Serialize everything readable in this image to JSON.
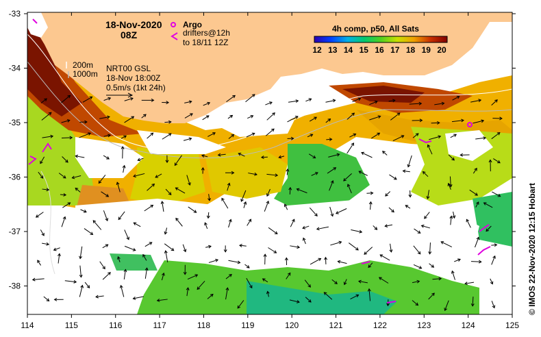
{
  "title": {
    "date": "18-Nov-2020",
    "time": "08Z"
  },
  "legend": {
    "argo_label": "Argo",
    "drifters_line1": "drifters@12h",
    "drifters_line2": "to 18/11 12Z",
    "argo_color": "#e000e0",
    "drifter_color": "#e000e0"
  },
  "contours": {
    "c200": "200m",
    "c1000": "1000m"
  },
  "currents": {
    "line1": "NRT00 GSL",
    "line2": "18-Nov 18:00Z",
    "line3": "0.5m/s (1kt 24h)"
  },
  "colorbar": {
    "title": "4h comp, p50, All Sats",
    "labels": [
      "12",
      "13",
      "14",
      "15",
      "16",
      "17",
      "18",
      "19",
      "20"
    ],
    "stops": [
      "#2a00b0",
      "#0040ff",
      "#00b0e8",
      "#00c870",
      "#50d020",
      "#c8e000",
      "#f0a000",
      "#c83000",
      "#800000"
    ]
  },
  "axes": {
    "lon_labels": [
      "114",
      "115",
      "116",
      "117",
      "118",
      "119",
      "120",
      "121",
      "122",
      "123",
      "124",
      "125"
    ],
    "lat_labels": [
      "-33",
      "-34",
      "-35",
      "-36",
      "-37",
      "-38"
    ]
  },
  "colors": {
    "land": "#fcc890",
    "frame": "#000000"
  },
  "credit": "© IMOS 22-Nov-2020 12:15 Hobart"
}
